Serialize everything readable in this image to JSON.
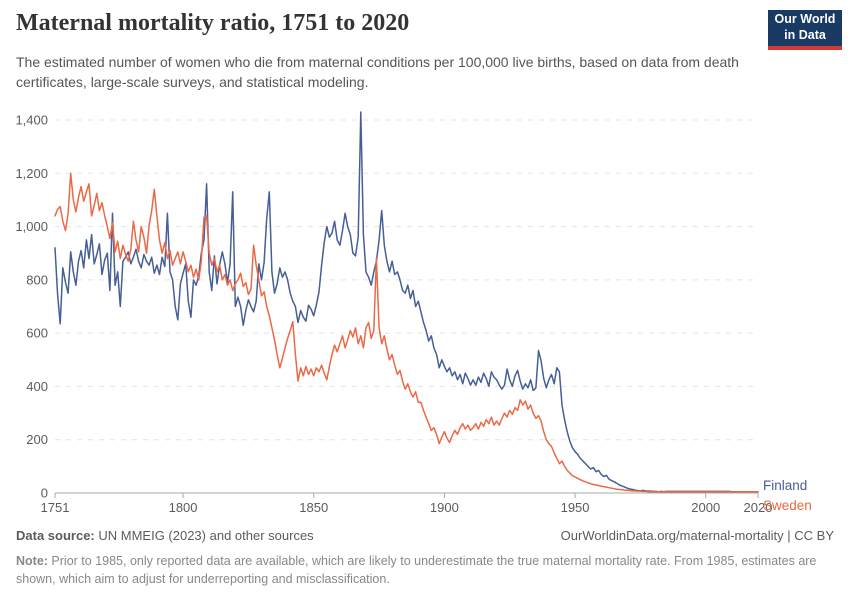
{
  "header": {
    "title": "Maternal mortality ratio, 1751 to 2020",
    "subtitle": "The estimated number of women who die from maternal conditions per 100,000 live births, based on data from death certificates, large-scale surveys, and statistical modeling.",
    "logo": {
      "line1": "Our World",
      "line2": "in Data",
      "bg_color": "#193A63",
      "accent_color": "#D63931"
    }
  },
  "colors": {
    "finland_line": "#465F96",
    "sweden_line": "#EB6946",
    "gridline": "#e3e3e3",
    "axis_line": "#a8a8a8",
    "tick_label": "#5c5c5c"
  },
  "chart_data": {
    "type": "line",
    "title": "Maternal mortality ratio, 1751 to 2020",
    "xlabel": "",
    "ylabel": "",
    "xlim": [
      1751,
      2020
    ],
    "ylim": [
      0,
      1400
    ],
    "x_start": 1751,
    "x_step": 1,
    "xticks": [
      1751,
      1800,
      1850,
      1900,
      1950,
      2000,
      2020
    ],
    "yticks": [
      0,
      200,
      400,
      600,
      800,
      1000,
      1200,
      1400
    ],
    "ytick_labels": [
      "0",
      "200",
      "400",
      "600",
      "800",
      "1,000",
      "1,200",
      "1,400"
    ],
    "grid": "dashed-horizontal",
    "legend_position": "right-of-line-ends, colored text, no swatch",
    "series": [
      {
        "name": "Finland",
        "color": "#465F96",
        "values": [
          920,
          745,
          635,
          845,
          790,
          750,
          905,
          830,
          780,
          870,
          910,
          845,
          950,
          880,
          970,
          860,
          895,
          935,
          820,
          875,
          900,
          760,
          1050,
          780,
          830,
          700,
          870,
          885,
          905,
          860,
          885,
          915,
          870,
          845,
          895,
          870,
          855,
          885,
          825,
          855,
          820,
          885,
          850,
          1050,
          830,
          800,
          700,
          650,
          785,
          825,
          860,
          720,
          660,
          800,
          780,
          815,
          900,
          950,
          1160,
          830,
          760,
          890,
          785,
          855,
          905,
          860,
          790,
          860,
          1130,
          700,
          735,
          700,
          630,
          685,
          725,
          700,
          680,
          720,
          860,
          800,
          865,
          1030,
          1130,
          830,
          750,
          785,
          845,
          810,
          830,
          800,
          750,
          720,
          700,
          640,
          685,
          660,
          645,
          705,
          690,
          665,
          705,
          755,
          855,
          940,
          1000,
          960,
          975,
          1020,
          950,
          930,
          985,
          1050,
          1000,
          970,
          900,
          890,
          960,
          1430,
          970,
          830,
          810,
          780,
          830,
          870,
          950,
          1060,
          930,
          870,
          830,
          870,
          820,
          830,
          800,
          760,
          750,
          780,
          730,
          760,
          700,
          720,
          680,
          640,
          610,
          570,
          590,
          545,
          520,
          470,
          500,
          475,
          455,
          470,
          440,
          455,
          425,
          445,
          410,
          450,
          430,
          405,
          425,
          405,
          435,
          415,
          450,
          430,
          400,
          455,
          435,
          425,
          405,
          390,
          405,
          465,
          425,
          400,
          440,
          460,
          420,
          390,
          410,
          395,
          425,
          385,
          395,
          535,
          495,
          430,
          395,
          425,
          445,
          410,
          470,
          455,
          330,
          275,
          230,
          195,
          170,
          155,
          145,
          130,
          120,
          110,
          100,
          90,
          95,
          80,
          85,
          70,
          62,
          66,
          52,
          46,
          42,
          36,
          30,
          26,
          22,
          18,
          15,
          13,
          11,
          9,
          8,
          10,
          8,
          7,
          7,
          6,
          6,
          5,
          6,
          5,
          6,
          6,
          6,
          6,
          6,
          6,
          6,
          6,
          6,
          6,
          6,
          6,
          6,
          6,
          6,
          6,
          6,
          6,
          6,
          6,
          6,
          6,
          6,
          6,
          6,
          5,
          5,
          5,
          5,
          5,
          5,
          5,
          5,
          5,
          5,
          5
        ]
      },
      {
        "name": "Sweden",
        "color": "#EB6946",
        "values": [
          1040,
          1065,
          1075,
          1020,
          985,
          1050,
          1200,
          1100,
          1055,
          1110,
          1150,
          1095,
          1130,
          1160,
          1040,
          1080,
          1125,
          1060,
          1090,
          1040,
          1000,
          955,
          1015,
          905,
          945,
          880,
          930,
          895,
          870,
          915,
          1020,
          950,
          905,
          1000,
          960,
          900,
          1005,
          1060,
          1140,
          1040,
          950,
          900,
          940,
          880,
          910,
          855,
          880,
          905,
          860,
          905,
          870,
          830,
          855,
          810,
          840,
          800,
          870,
          1035,
          1040,
          900,
          855,
          880,
          830,
          855,
          800,
          820,
          780,
          800,
          760,
          785,
          800,
          825,
          775,
          790,
          745,
          765,
          930,
          855,
          800,
          740,
          755,
          700,
          665,
          620,
          575,
          520,
          470,
          505,
          545,
          580,
          610,
          643,
          520,
          420,
          470,
          440,
          475,
          445,
          465,
          440,
          470,
          455,
          480,
          450,
          425,
          475,
          520,
          555,
          530,
          560,
          590,
          545,
          575,
          610,
          585,
          620,
          560,
          590,
          545,
          620,
          640,
          580,
          610,
          880,
          620,
          560,
          590,
          540,
          500,
          520,
          480,
          445,
          460,
          420,
          390,
          410,
          380,
          360,
          380,
          340,
          340,
          310,
          285,
          260,
          235,
          245,
          220,
          185,
          210,
          230,
          205,
          190,
          215,
          235,
          220,
          245,
          260,
          240,
          255,
          235,
          245,
          260,
          240,
          265,
          250,
          275,
          260,
          285,
          255,
          270,
          255,
          280,
          300,
          285,
          310,
          295,
          320,
          310,
          350,
          330,
          345,
          315,
          330,
          300,
          280,
          290,
          270,
          230,
          200,
          185,
          175,
          150,
          130,
          110,
          120,
          100,
          85,
          75,
          65,
          60,
          55,
          50,
          45,
          42,
          38,
          35,
          32,
          30,
          28,
          26,
          24,
          22,
          20,
          18,
          16,
          14,
          13,
          12,
          11,
          10,
          9,
          8,
          8,
          7,
          7,
          6,
          6,
          5,
          5,
          5,
          5,
          5,
          4,
          4,
          4,
          4,
          4,
          4,
          4,
          4,
          4,
          4,
          4,
          4,
          4,
          4,
          4,
          4,
          4,
          4,
          4,
          4,
          4,
          4,
          4,
          4,
          4,
          4,
          4,
          4,
          4,
          4,
          4,
          4,
          4,
          4,
          4,
          4,
          4,
          4
        ]
      }
    ]
  },
  "footer": {
    "datasource_label": "Data source:",
    "datasource_text": " UN MMEIG (2023) and other sources",
    "link_text": "OurWorldinData.org/maternal-mortality | CC BY",
    "note_label": "Note:",
    "note_text": " Prior to 1985, only reported data are available, which are likely to underestimate the true maternal mortality rate. From 1985, estimates are shown, which aim to adjust for underreporting and misclassification."
  }
}
